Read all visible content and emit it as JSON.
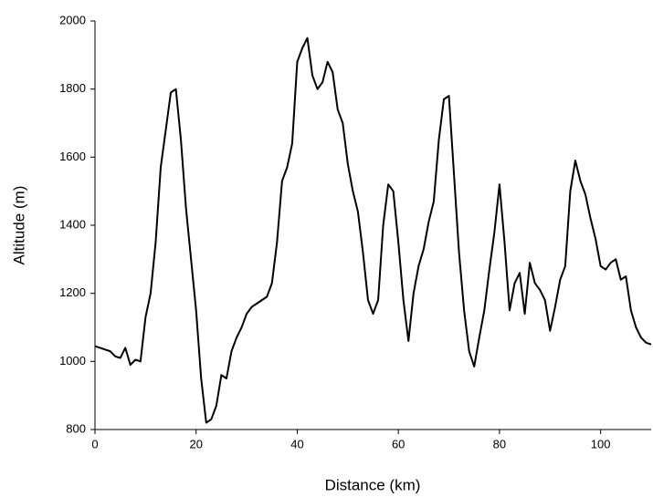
{
  "chart_data": {
    "type": "line",
    "xlabel": "Distance (km)",
    "ylabel": "Altitude (m)",
    "x": [
      0,
      1,
      2,
      3,
      4,
      5,
      6,
      7,
      8,
      9,
      10,
      11,
      12,
      13,
      14,
      15,
      16,
      17,
      18,
      19,
      20,
      21,
      22,
      23,
      24,
      25,
      26,
      27,
      28,
      29,
      30,
      31,
      32,
      33,
      34,
      35,
      36,
      37,
      38,
      39,
      40,
      41,
      42,
      43,
      44,
      45,
      46,
      47,
      48,
      49,
      50,
      51,
      52,
      53,
      54,
      55,
      56,
      57,
      58,
      59,
      60,
      61,
      62,
      63,
      64,
      65,
      66,
      67,
      68,
      69,
      70,
      71,
      72,
      73,
      74,
      75,
      76,
      77,
      78,
      79,
      80,
      81,
      82,
      83,
      84,
      85,
      86,
      87,
      88,
      89,
      90,
      91,
      92,
      93,
      94,
      95,
      96,
      97,
      98,
      99,
      100,
      101,
      102,
      103,
      104,
      105,
      106,
      107,
      108,
      109,
      110
    ],
    "series": [
      {
        "name": "Altitude",
        "color": "#000000",
        "values": [
          1045,
          1040,
          1035,
          1030,
          1015,
          1010,
          1040,
          990,
          1005,
          1000,
          1130,
          1200,
          1350,
          1570,
          1680,
          1790,
          1800,
          1650,
          1450,
          1300,
          1150,
          950,
          820,
          830,
          870,
          960,
          950,
          1030,
          1070,
          1100,
          1140,
          1160,
          1170,
          1180,
          1190,
          1230,
          1350,
          1530,
          1570,
          1640,
          1880,
          1920,
          1950,
          1840,
          1800,
          1820,
          1880,
          1850,
          1740,
          1700,
          1580,
          1500,
          1440,
          1320,
          1180,
          1140,
          1180,
          1400,
          1520,
          1500,
          1350,
          1180,
          1060,
          1200,
          1280,
          1330,
          1410,
          1470,
          1650,
          1770,
          1780,
          1550,
          1320,
          1150,
          1030,
          985,
          1070,
          1150,
          1270,
          1380,
          1520,
          1350,
          1150,
          1230,
          1260,
          1140,
          1290,
          1230,
          1210,
          1180,
          1090,
          1160,
          1240,
          1280,
          1500,
          1590,
          1530,
          1490,
          1420,
          1360,
          1280,
          1270,
          1290,
          1300,
          1240,
          1250,
          1150,
          1100,
          1070,
          1055,
          1050
        ]
      }
    ],
    "xlim": [
      0,
      110
    ],
    "ylim": [
      800,
      2000
    ],
    "xticks": [
      0,
      20,
      40,
      60,
      80,
      100
    ],
    "yticks": [
      800,
      1000,
      1200,
      1400,
      1600,
      1800,
      2000
    ]
  }
}
